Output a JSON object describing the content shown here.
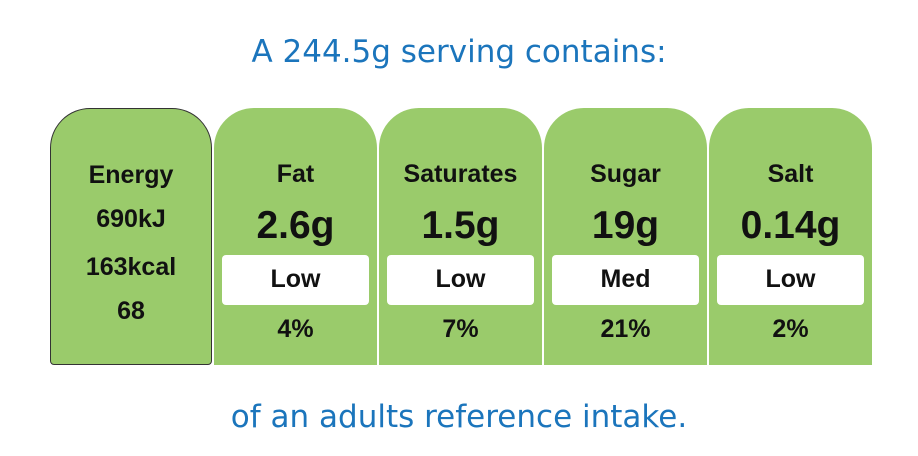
{
  "header": {
    "title": "A 244.5g serving contains:"
  },
  "energy": {
    "label": "Energy",
    "lines": [
      "690kJ",
      "163kcal",
      "68"
    ]
  },
  "nutrients": [
    {
      "name": "Fat",
      "amount": "2.6g",
      "level": "Low",
      "percent": "4%"
    },
    {
      "name": "Saturates",
      "amount": "1.5g",
      "level": "Low",
      "percent": "7%"
    },
    {
      "name": "Sugar",
      "amount": "19g",
      "level": "Med",
      "percent": "21%"
    },
    {
      "name": "Salt",
      "amount": "0.14g",
      "level": "Low",
      "percent": "2%"
    }
  ],
  "footer": {
    "text": "of an adults reference intake."
  }
}
